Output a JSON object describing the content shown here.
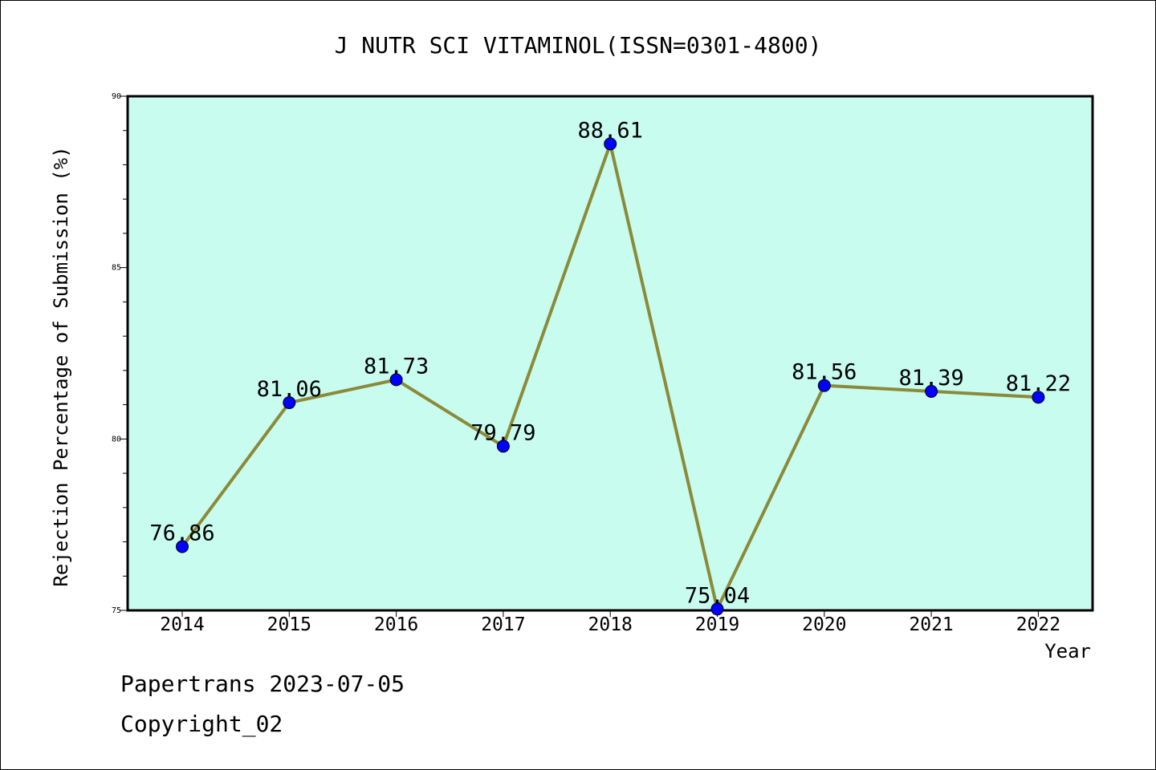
{
  "chart_data": {
    "type": "line",
    "title": "J NUTR SCI VITAMINOL(ISSN=0301-4800)",
    "xlabel": "Year",
    "ylabel": "Rejection Percentage of Submission (%)",
    "categories": [
      "2014",
      "2015",
      "2016",
      "2017",
      "2018",
      "2019",
      "2020",
      "2021",
      "2022"
    ],
    "values": [
      76.86,
      81.06,
      81.73,
      79.79,
      88.61,
      75.04,
      81.56,
      81.39,
      81.22
    ],
    "data_labels": [
      "76.86",
      "81.06",
      "81.73",
      "79.79",
      "88.61",
      "75.04",
      "81.56",
      "81.39",
      "81.22"
    ],
    "ylim": [
      75,
      90
    ],
    "yticks": [
      "75",
      "80",
      "85",
      "90"
    ],
    "grid": false,
    "colors": {
      "plot_background": "#c8fcee",
      "line": "#8b8a3a",
      "marker": "#0000ff"
    }
  },
  "footer": {
    "line1": "Papertrans 2023-07-05",
    "line2": "Copyright_02"
  }
}
